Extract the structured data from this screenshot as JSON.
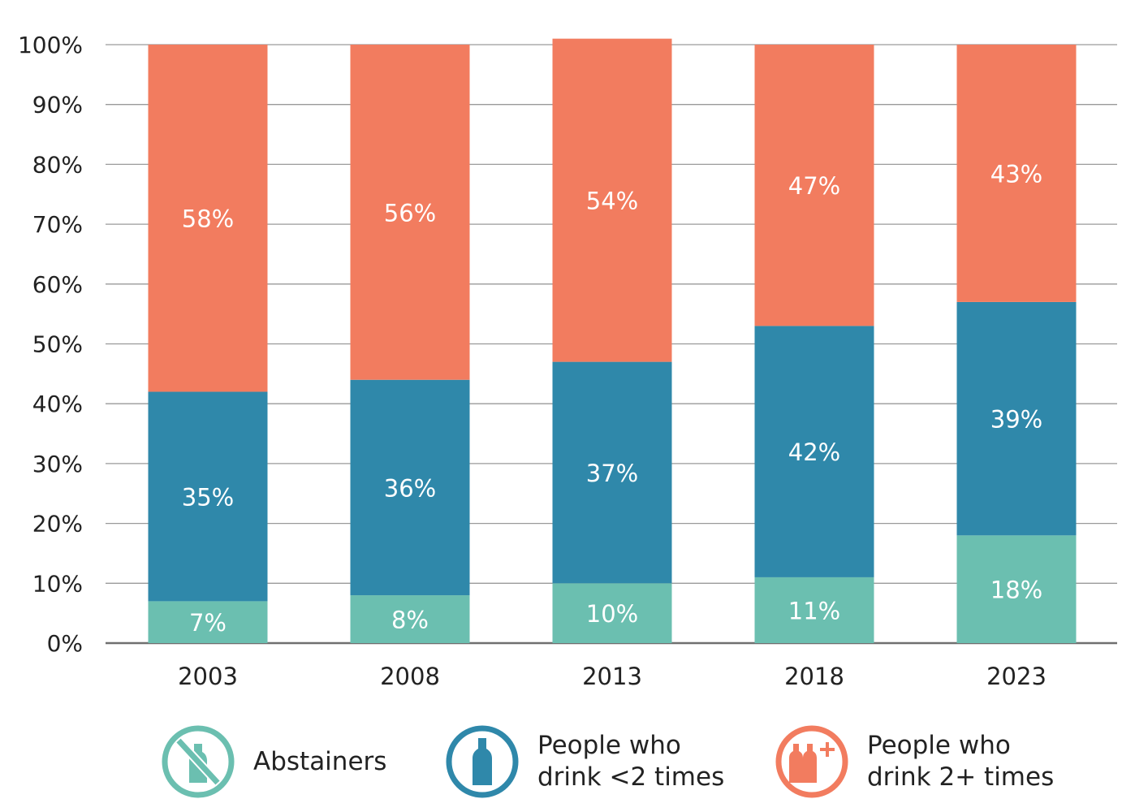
{
  "chart_data": {
    "type": "bar",
    "stacked": true,
    "percent": true,
    "categories": [
      "2003",
      "2008",
      "2013",
      "2018",
      "2023"
    ],
    "series": [
      {
        "name": "Abstainers",
        "color": "#6bbfb0",
        "values": [
          7,
          8,
          10,
          11,
          18
        ],
        "labels": [
          "7%",
          "8%",
          "10%",
          "11%",
          "18%"
        ]
      },
      {
        "name": "People who drink <2 times",
        "color": "#2f88aa",
        "values": [
          35,
          36,
          37,
          42,
          39
        ],
        "labels": [
          "35%",
          "36%",
          "37%",
          "42%",
          "39%"
        ]
      },
      {
        "name": "People who drink 2+ times",
        "color": "#f27c5f",
        "values": [
          58,
          56,
          54,
          47,
          43
        ],
        "labels": [
          "58%",
          "56%",
          "54%",
          "47%",
          "43%"
        ]
      }
    ],
    "ylim": [
      0,
      100
    ],
    "yticks": [
      "0%",
      "10%",
      "20%",
      "30%",
      "40%",
      "50%",
      "60%",
      "70%",
      "80%",
      "90%",
      "100%"
    ],
    "grid": true,
    "legend_position": "bottom"
  },
  "legend": [
    {
      "icon": "no-bottle-icon",
      "color": "#6bbfb0",
      "line1": "Abstainers",
      "line2": ""
    },
    {
      "icon": "bottle-icon",
      "color": "#2f88aa",
      "line1": "People who",
      "line2": "drink <2 times"
    },
    {
      "icon": "two-bottles-plus-icon",
      "color": "#f27c5f",
      "line1": "People who",
      "line2": "drink 2+ times"
    }
  ]
}
